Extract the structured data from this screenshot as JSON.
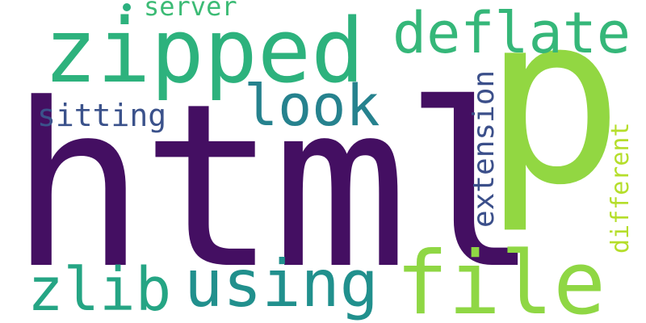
{
  "words": [
    {
      "id": "html",
      "text": "html",
      "color": "#440f62"
    },
    {
      "id": "p",
      "text": "p",
      "color": "#92d742"
    },
    {
      "id": "zipped",
      "text": "zipped",
      "color": "#2db27d"
    },
    {
      "id": "deflate",
      "text": "deflate",
      "color": "#35b779"
    },
    {
      "id": "file",
      "text": "file",
      "color": "#8fd744"
    },
    {
      "id": "using",
      "text": "using",
      "color": "#21908d"
    },
    {
      "id": "zlib",
      "text": "zlib",
      "color": "#25a584"
    },
    {
      "id": "look",
      "text": "look",
      "color": "#26828e"
    },
    {
      "id": "sitting",
      "text": "sitting",
      "color": "#3b528b"
    },
    {
      "id": "server",
      "text": "server",
      "color": "#3cbb75"
    },
    {
      "id": "extension",
      "text": "extension",
      "color": "#3b4f8a"
    },
    {
      "id": "different",
      "text": "different",
      "color": "#b5de2b"
    }
  ]
}
